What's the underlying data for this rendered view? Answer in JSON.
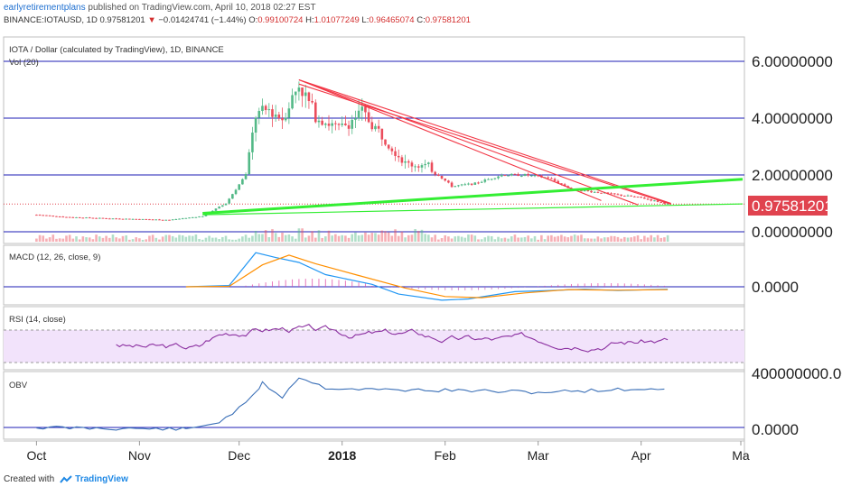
{
  "header": {
    "author": "earlyretirementplans",
    "published": " published on TradingView.com, April 10, 2018 02:27 EST",
    "symbol_line_prefix": "BINANCE:IOTAUSD, 1D",
    "last": "0.97581201",
    "change": "−0.01424741 (−1.44%)",
    "o_label": "O:",
    "o": "0.99100724",
    "h_label": "H:",
    "h": "1.01077249",
    "l_label": "L:",
    "l": "0.96465074",
    "c_label": "C:",
    "c": "0.97581201"
  },
  "footer": {
    "created_with": "Created with",
    "brand": "TradingView"
  },
  "chart_data": {
    "type": "line",
    "main_pane": {
      "title": "IOTA / Dollar (calculated by TradingView), 1D, BINANCE",
      "vol_label": "Vol (20)",
      "y_ticks": [
        "6.00000000",
        "4.00000000",
        "2.00000000",
        "0.00000000"
      ],
      "last_price_label": "0.97581201",
      "price_path_note": "candlestick daily price, approx closes",
      "closes": [
        [
          "2017-10-01",
          0.6
        ],
        [
          "2017-10-10",
          0.52
        ],
        [
          "2017-10-20",
          0.48
        ],
        [
          "2017-10-30",
          0.45
        ],
        [
          "2017-11-10",
          0.42
        ],
        [
          "2017-11-20",
          0.55
        ],
        [
          "2017-11-27",
          1.0
        ],
        [
          "2017-12-03",
          2.0
        ],
        [
          "2017-12-06",
          4.1
        ],
        [
          "2017-12-10",
          4.3
        ],
        [
          "2017-12-14",
          4.0
        ],
        [
          "2017-12-19",
          5.2
        ],
        [
          "2017-12-24",
          4.1
        ],
        [
          "2017-12-31",
          3.6
        ],
        [
          "2018-01-07",
          4.2
        ],
        [
          "2018-01-13",
          3.4
        ],
        [
          "2018-01-20",
          2.4
        ],
        [
          "2018-01-27",
          2.3
        ],
        [
          "2018-02-03",
          1.6
        ],
        [
          "2018-02-10",
          1.7
        ],
        [
          "2018-02-18",
          2.0
        ],
        [
          "2018-02-25",
          2.0
        ],
        [
          "2018-03-04",
          1.9
        ],
        [
          "2018-03-11",
          1.5
        ],
        [
          "2018-03-18",
          1.4
        ],
        [
          "2018-03-25",
          1.3
        ],
        [
          "2018-04-01",
          1.2
        ],
        [
          "2018-04-09",
          0.98
        ]
      ]
    },
    "macd": {
      "label": "MACD (12, 26, close, 9)",
      "y_ticks": [
        "0.0000"
      ]
    },
    "rsi": {
      "label": "RSI (14, close)"
    },
    "obv": {
      "label": "OBV",
      "y_ticks": [
        "400000000.0000",
        "0.0000"
      ]
    },
    "x_ticks": [
      "Oct",
      "Nov",
      "Dec",
      "2018",
      "Feb",
      "Mar",
      "Apr",
      "Ma"
    ],
    "colors": {
      "up": "#53b987",
      "down": "#eb4d5c",
      "hline": "#1c1cb4",
      "trend_red": "#f23645",
      "trend_green": "#33ee33",
      "macd": "#2196f3",
      "signal": "#ff8f00",
      "rsi": "#8b2fa0",
      "rsi_band": "#f2e3fb",
      "obv": "#3a6fb7",
      "price_tag": "#e0434f"
    }
  }
}
